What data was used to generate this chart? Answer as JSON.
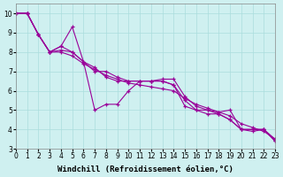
{
  "bg_color": "#cff0f0",
  "grid_color": "#aadddd",
  "line_color": "#990099",
  "xlim": [
    0,
    23
  ],
  "ylim": [
    3,
    10.5
  ],
  "xticks": [
    0,
    1,
    2,
    3,
    4,
    5,
    6,
    7,
    8,
    9,
    10,
    11,
    12,
    13,
    14,
    15,
    16,
    17,
    18,
    19,
    20,
    21,
    22,
    23
  ],
  "yticks": [
    3,
    4,
    5,
    6,
    7,
    8,
    9,
    10
  ],
  "lines": [
    {
      "x": [
        0,
        1,
        2,
        3,
        4,
        5,
        6,
        7,
        8,
        9,
        10,
        11,
        12,
        13,
        14,
        15,
        16,
        17,
        18,
        19,
        20,
        21,
        22,
        23
      ],
      "y": [
        10,
        10,
        8.9,
        8.0,
        8.3,
        9.3,
        7.5,
        5.0,
        5.3,
        5.3,
        6.0,
        6.5,
        6.5,
        6.6,
        6.6,
        5.7,
        5.2,
        5.0,
        4.9,
        5.0,
        4.0,
        4.0,
        4.0,
        3.4
      ]
    },
    {
      "x": [
        0,
        1,
        2,
        3,
        4,
        5,
        6,
        7,
        8,
        9,
        10,
        11,
        12,
        13,
        14,
        15,
        16,
        17,
        18,
        19,
        20,
        21,
        22,
        23
      ],
      "y": [
        10,
        10,
        8.9,
        8.0,
        8.3,
        8.0,
        7.5,
        7.0,
        7.0,
        6.7,
        6.5,
        6.5,
        6.5,
        6.5,
        6.3,
        5.5,
        5.0,
        5.0,
        4.8,
        4.5,
        4.0,
        4.0,
        4.0,
        3.5
      ]
    },
    {
      "x": [
        0,
        1,
        2,
        3,
        4,
        5,
        6,
        7,
        8,
        9,
        10,
        11,
        12,
        13,
        14,
        15,
        16,
        17,
        18,
        19,
        20,
        21,
        22,
        23
      ],
      "y": [
        10,
        10,
        8.9,
        8.0,
        8.1,
        8.0,
        7.5,
        7.2,
        6.7,
        6.5,
        6.5,
        6.5,
        6.5,
        6.5,
        6.3,
        5.2,
        5.0,
        4.8,
        4.8,
        4.5,
        4.0,
        3.9,
        4.0,
        3.4
      ]
    },
    {
      "x": [
        0,
        1,
        2,
        3,
        4,
        5,
        6,
        7,
        8,
        9,
        10,
        11,
        12,
        13,
        14,
        15,
        16,
        17,
        18,
        19,
        20,
        21,
        22,
        23
      ],
      "y": [
        10,
        10,
        8.9,
        8.0,
        8.0,
        7.8,
        7.4,
        7.1,
        6.8,
        6.6,
        6.4,
        6.3,
        6.2,
        6.1,
        6.0,
        5.6,
        5.3,
        5.1,
        4.9,
        4.7,
        4.3,
        4.1,
        3.9,
        3.5
      ]
    }
  ],
  "marker": "+",
  "markersize": 3.5,
  "linewidth": 0.8,
  "xlabel": "Windchill (Refroidissement éolien,°C)",
  "xlabel_fontsize": 6.5,
  "tick_fontsize": 5.5
}
